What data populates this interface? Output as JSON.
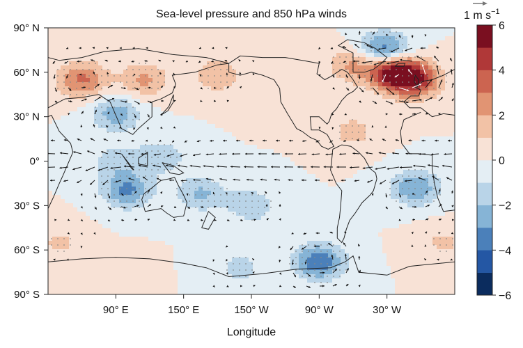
{
  "chart_data": {
    "type": "heatmap",
    "title": "Sea-level pressure and 850 hPa winds",
    "xlabel": "Longitude",
    "ylabel": "",
    "x_ticks": [
      {
        "value": 90,
        "label": "90° E"
      },
      {
        "value": 150,
        "label": "150° E"
      },
      {
        "value": 210,
        "label": "150° W"
      },
      {
        "value": 270,
        "label": "90° W"
      },
      {
        "value": 330,
        "label": "30° W"
      }
    ],
    "y_ticks": [
      {
        "value": 90,
        "label": "90° N"
      },
      {
        "value": 60,
        "label": "60° N"
      },
      {
        "value": 30,
        "label": "30° N"
      },
      {
        "value": 0,
        "label": "0°"
      },
      {
        "value": -30,
        "label": "30° S"
      },
      {
        "value": -60,
        "label": "60° S"
      },
      {
        "value": -90,
        "label": "90° S"
      }
    ],
    "xlim": [
      30,
      390
    ],
    "ylim": [
      -90,
      90
    ],
    "colorbar": {
      "min": -6,
      "max": 6,
      "levels": [
        -6,
        -5,
        -4,
        -3,
        -2,
        -1,
        0,
        1,
        2,
        3,
        4,
        5,
        6
      ],
      "tick_values": [
        -6,
        -4,
        -2,
        0,
        2,
        4,
        6
      ],
      "tick_labels": [
        "−6",
        "−4",
        "−2",
        "0",
        "2",
        "4",
        "6"
      ],
      "colors": [
        "#0b2c5e",
        "#2457a4",
        "#4b80ba",
        "#86b4d6",
        "#b9d4e8",
        "#e4eef4",
        "#f8e2d6",
        "#f2c2a6",
        "#e19473",
        "#cc6450",
        "#b03838",
        "#7a0f20"
      ]
    },
    "wind_reference": {
      "label": "1 m s",
      "exponent": "−1",
      "value": 1
    },
    "anomaly_features": [
      {
        "lon": 60,
        "lat": 55,
        "value": 3.2
      },
      {
        "lon": 115,
        "lat": 55,
        "value": 2.2
      },
      {
        "lon": 180,
        "lat": 58,
        "value": 1.8
      },
      {
        "lon": 235,
        "lat": 45,
        "value": 0.8
      },
      {
        "lon": 300,
        "lat": 65,
        "value": 2.2
      },
      {
        "lon": 335,
        "lat": 60,
        "value": 5.5
      },
      {
        "lon": 355,
        "lat": 55,
        "value": 4.5
      },
      {
        "lon": 328,
        "lat": 75,
        "value": -4.0
      },
      {
        "lon": 90,
        "lat": 32,
        "value": -2.6
      },
      {
        "lon": 130,
        "lat": 3,
        "value": -1.8
      },
      {
        "lon": 90,
        "lat": 0,
        "value": -1.6
      },
      {
        "lon": 100,
        "lat": -20,
        "value": -3.2
      },
      {
        "lon": 165,
        "lat": -22,
        "value": -2.2
      },
      {
        "lon": 210,
        "lat": -30,
        "value": -1.8
      },
      {
        "lon": 355,
        "lat": -18,
        "value": -3.0
      },
      {
        "lon": 270,
        "lat": -68,
        "value": -4.0
      },
      {
        "lon": 200,
        "lat": -72,
        "value": -1.4
      },
      {
        "lon": 300,
        "lat": 20,
        "value": 1.4
      },
      {
        "lon": 90,
        "lat": -78,
        "value": 0.6
      },
      {
        "lon": 40,
        "lat": -55,
        "value": 1.2
      },
      {
        "lon": 380,
        "lat": -55,
        "value": 1.2
      }
    ]
  }
}
